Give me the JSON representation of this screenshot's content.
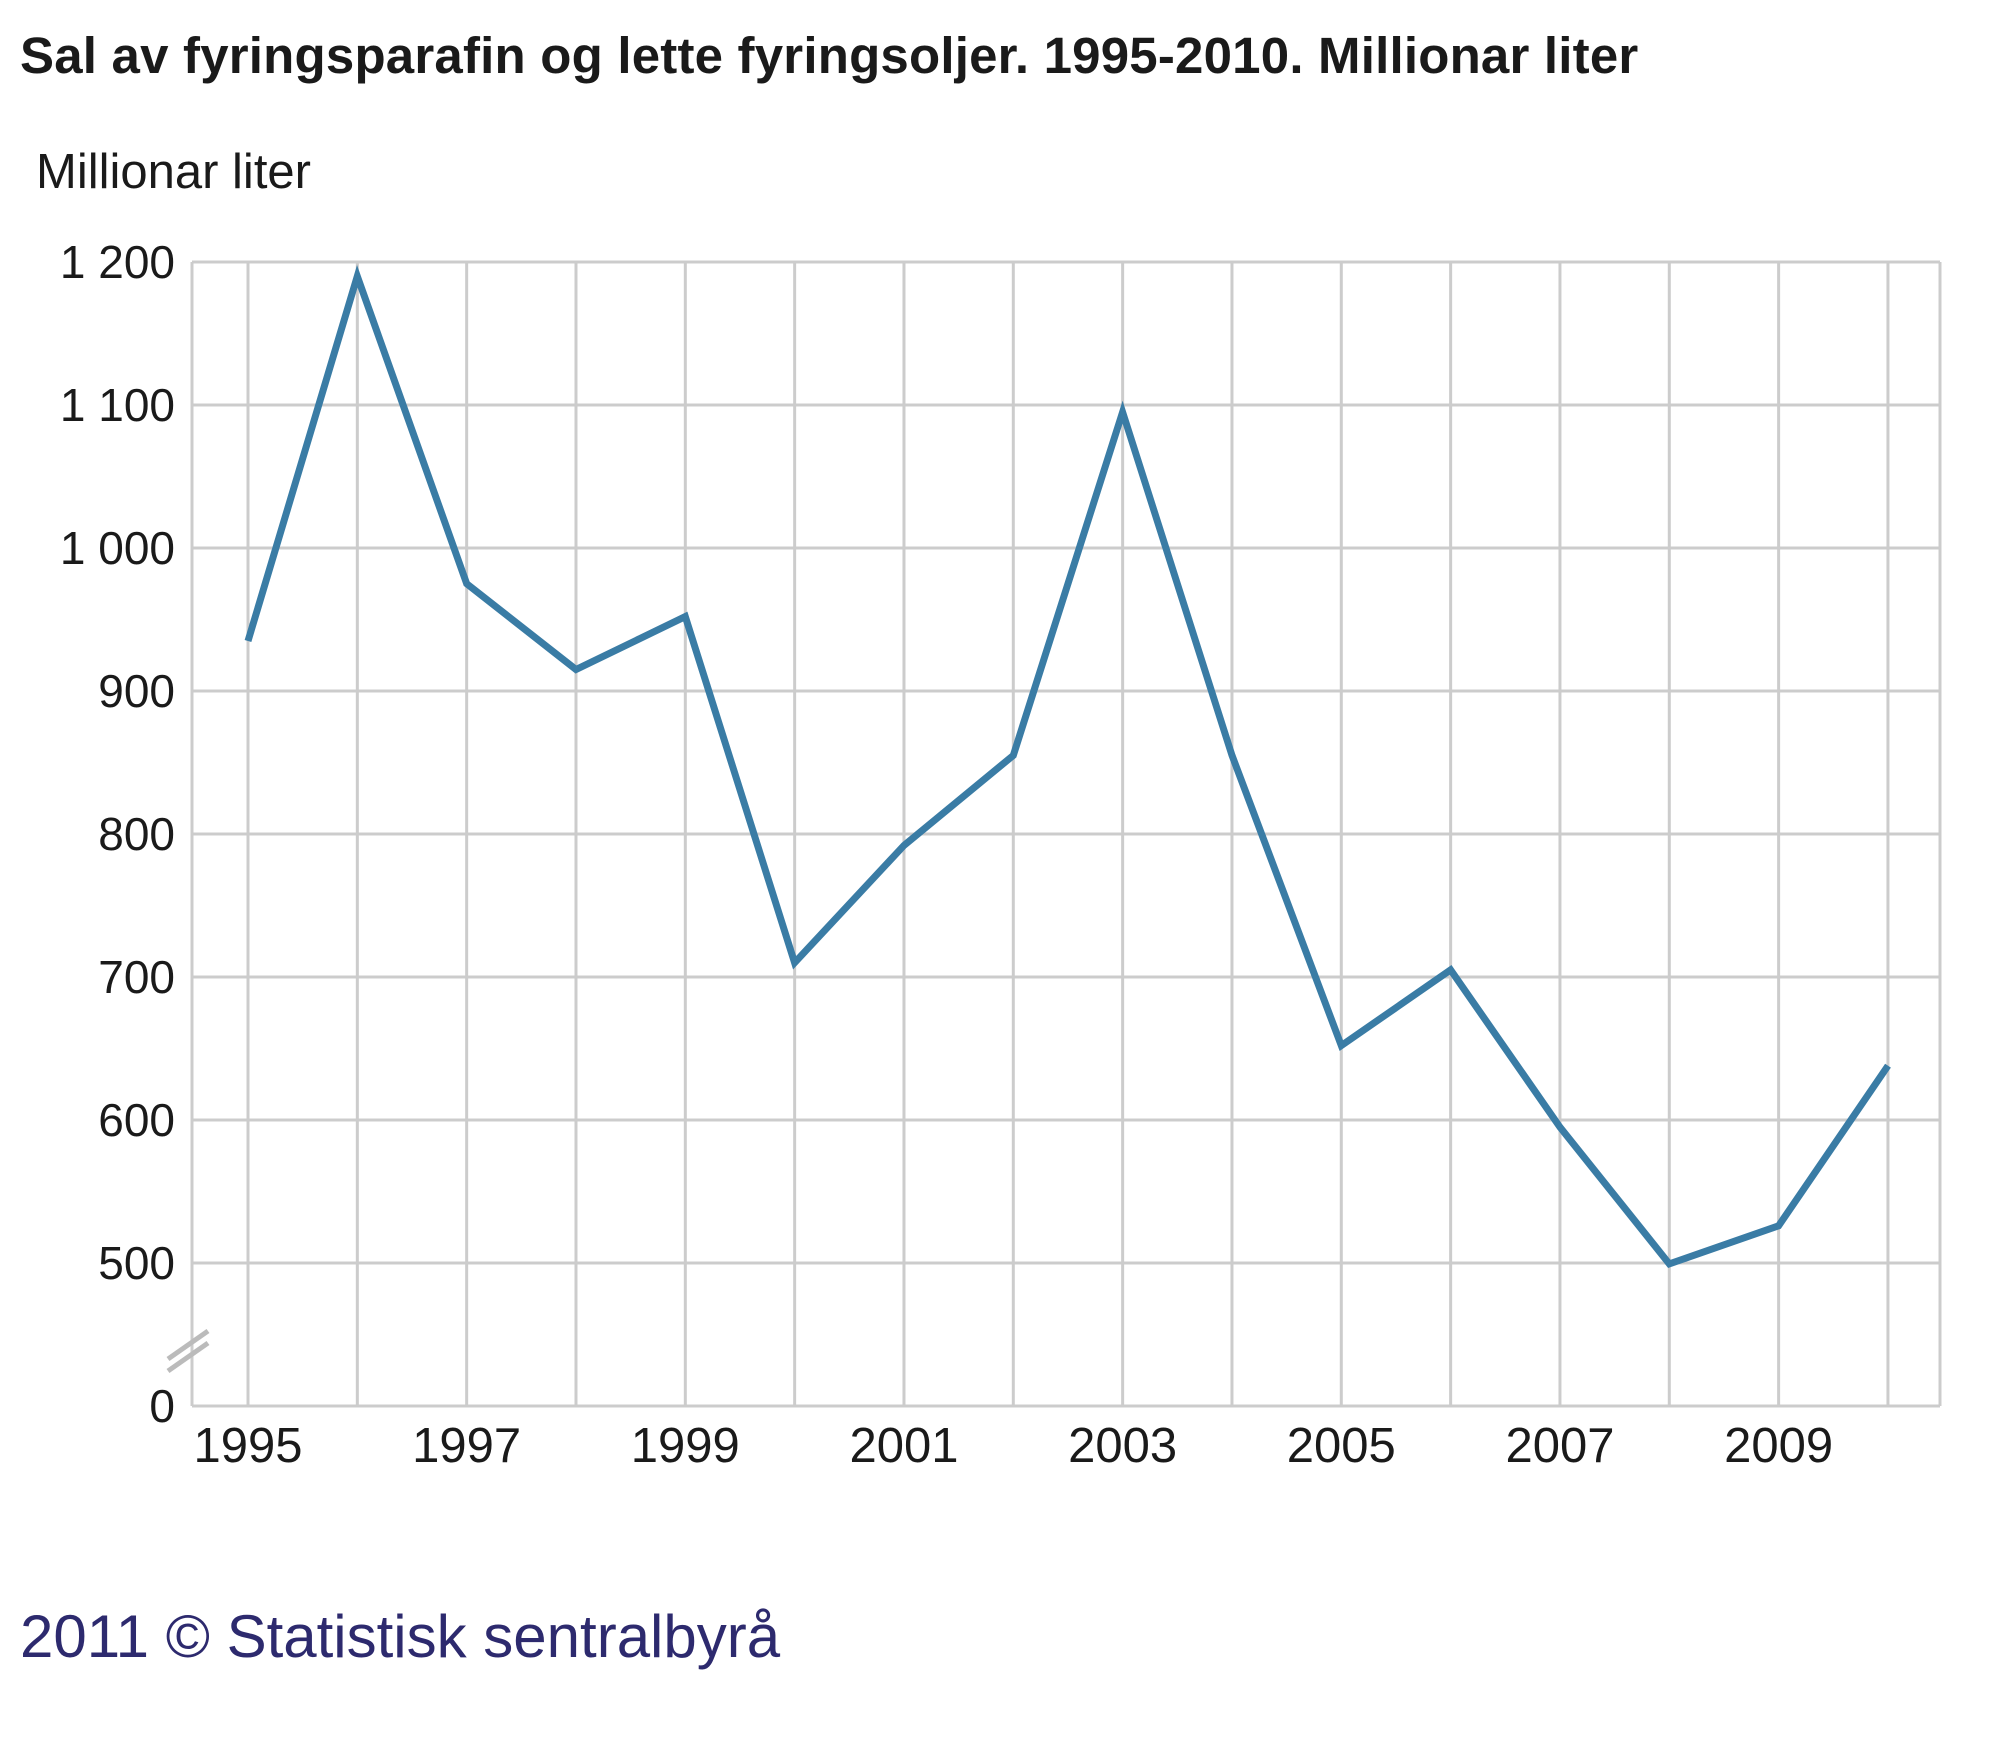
{
  "footer": {
    "credit": "2011 © Statistisk sentralbyrå"
  },
  "chart_data": {
    "type": "line",
    "title": "Sal av fyringsparafin og lette fyringsoljer. 1995-2010. Millionar liter",
    "ylabel": "Millionar liter",
    "xlabel": "",
    "x": [
      1995,
      1996,
      1997,
      1998,
      1999,
      2000,
      2001,
      2002,
      2003,
      2004,
      2005,
      2006,
      2007,
      2008,
      2009,
      2010
    ],
    "series": [
      {
        "values": [
          935,
          1190,
          975,
          915,
          952,
          710,
          792,
          855,
          1095,
          855,
          652,
          705,
          595,
          497,
          526,
          638
        ]
      }
    ],
    "x_tick_labels": [
      "1995",
      "1997",
      "1999",
      "2001",
      "2003",
      "2005",
      "2007",
      "2009"
    ],
    "y_tick_labels": [
      "0",
      "500",
      "600",
      "700",
      "800",
      "900",
      "1 000",
      "1 100",
      "1 200"
    ],
    "y_ticks": [
      0,
      500,
      600,
      700,
      800,
      900,
      1000,
      1100,
      1200
    ],
    "ylim": [
      0,
      1200
    ],
    "axis_break": "between 0 and 500",
    "grid": true,
    "line_color": "#3a7ca5",
    "grid_color": "#cccccc"
  }
}
